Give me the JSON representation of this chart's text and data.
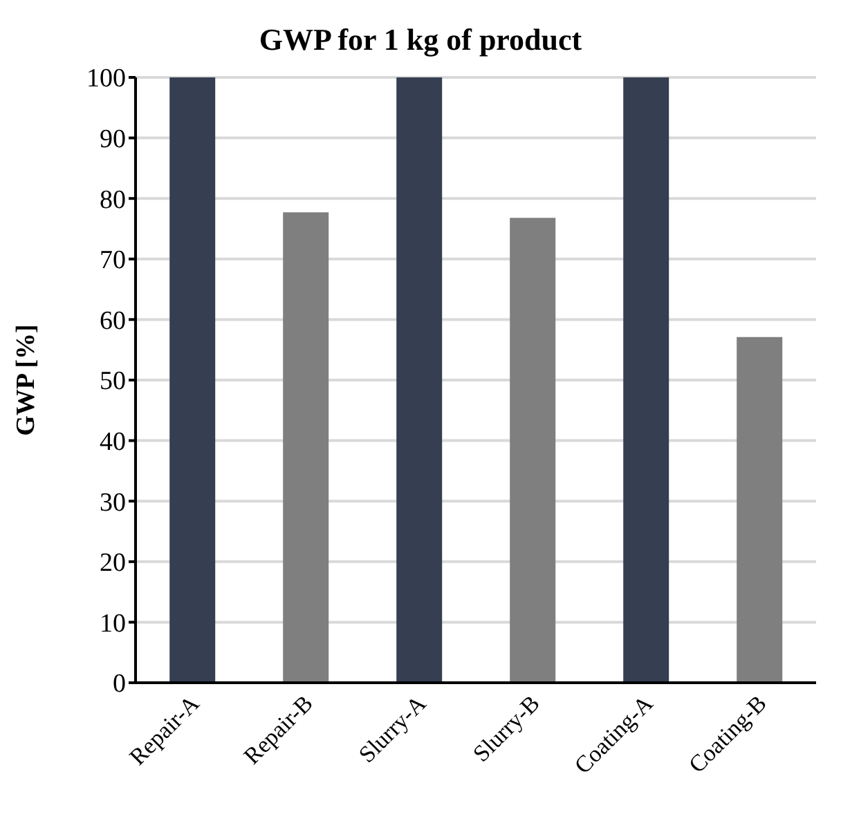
{
  "chart_data": {
    "type": "bar",
    "title": "GWP for 1 kg of product",
    "ylabel": "GWP [%]",
    "categories": [
      "Repair-A",
      "Repair-B",
      "Slurry-A",
      "Slurry-B",
      "Coating-A",
      "Coating-B"
    ],
    "values": [
      100,
      77.7,
      100,
      76.8,
      100,
      57.1
    ],
    "colors": [
      "#353f51",
      "#7f7f7f",
      "#353f51",
      "#7f7f7f",
      "#353f51",
      "#7f7f7f"
    ],
    "ylim": [
      0,
      100
    ],
    "yticks": [
      0,
      10,
      20,
      30,
      40,
      50,
      60,
      70,
      80,
      90,
      100
    ],
    "grid": "y"
  }
}
